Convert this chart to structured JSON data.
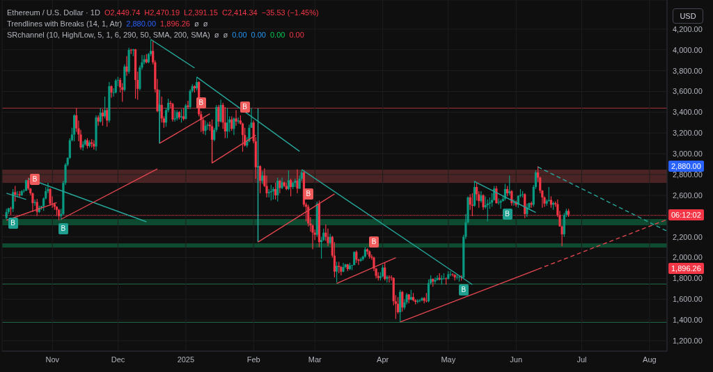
{
  "chart_data": {
    "type": "candlestick",
    "title": "Ethereum / U.S. Dollar · 1D",
    "x": [
      "2024-10-11",
      "2024-10-12",
      "2024-10-13",
      "2024-10-14",
      "2024-10-15",
      "2024-10-16",
      "2024-10-17",
      "2024-10-18",
      "2024-10-19",
      "2024-10-20",
      "2024-10-21",
      "2024-10-22",
      "2024-10-23",
      "2024-10-24",
      "2024-10-25",
      "2024-10-26",
      "2024-10-27",
      "2024-10-28",
      "2024-10-29",
      "2024-10-30",
      "2024-10-31",
      "2024-11-01",
      "2024-11-02",
      "2024-11-03",
      "2024-11-04",
      "2024-11-05",
      "2024-11-06",
      "2024-11-07",
      "2024-11-08",
      "2024-11-09",
      "2024-11-10",
      "2024-11-11",
      "2024-11-12",
      "2024-11-13",
      "2024-11-14",
      "2024-11-15",
      "2024-11-16",
      "2024-11-17",
      "2024-11-18",
      "2024-11-19",
      "2024-11-20",
      "2024-11-21",
      "2024-11-22",
      "2024-11-23",
      "2024-11-24",
      "2024-11-25",
      "2024-11-26",
      "2024-11-27",
      "2024-11-28",
      "2024-11-29",
      "2024-11-30",
      "2024-12-01",
      "2024-12-02",
      "2024-12-03",
      "2024-12-04",
      "2024-12-05",
      "2024-12-06",
      "2024-12-07",
      "2024-12-08",
      "2024-12-09",
      "2024-12-10",
      "2024-12-11",
      "2024-12-12",
      "2024-12-13",
      "2024-12-14",
      "2024-12-15",
      "2024-12-16",
      "2024-12-17",
      "2024-12-18",
      "2024-12-19",
      "2024-12-20",
      "2024-12-21",
      "2024-12-22",
      "2024-12-23",
      "2024-12-24",
      "2024-12-25",
      "2024-12-26",
      "2024-12-27",
      "2024-12-28",
      "2024-12-29",
      "2024-12-30",
      "2024-12-31",
      "2025-01-01",
      "2025-01-02",
      "2025-01-03",
      "2025-01-04",
      "2025-01-05",
      "2025-01-06",
      "2025-01-07",
      "2025-01-08",
      "2025-01-09",
      "2025-01-10",
      "2025-01-11",
      "2025-01-12",
      "2025-01-13",
      "2025-01-14",
      "2025-01-15",
      "2025-01-16",
      "2025-01-17",
      "2025-01-18",
      "2025-01-19",
      "2025-01-20",
      "2025-01-21",
      "2025-01-22",
      "2025-01-23",
      "2025-01-24",
      "2025-01-25",
      "2025-01-26",
      "2025-01-27",
      "2025-01-28",
      "2025-01-29",
      "2025-01-30",
      "2025-01-31",
      "2025-02-01",
      "2025-02-02",
      "2025-02-03",
      "2025-02-04",
      "2025-02-05",
      "2025-02-06",
      "2025-02-07",
      "2025-02-08",
      "2025-02-09",
      "2025-02-10",
      "2025-02-11",
      "2025-02-12",
      "2025-02-13",
      "2025-02-14",
      "2025-02-15",
      "2025-02-16",
      "2025-02-17",
      "2025-02-18",
      "2025-02-19",
      "2025-02-20",
      "2025-02-21",
      "2025-02-22",
      "2025-02-23",
      "2025-02-24",
      "2025-02-25",
      "2025-02-26",
      "2025-02-27",
      "2025-02-28",
      "2025-03-01",
      "2025-03-02",
      "2025-03-03",
      "2025-03-04",
      "2025-03-05",
      "2025-03-06",
      "2025-03-07",
      "2025-03-08",
      "2025-03-09",
      "2025-03-10",
      "2025-03-11",
      "2025-03-12",
      "2025-03-13",
      "2025-03-14",
      "2025-03-15",
      "2025-03-16",
      "2025-03-17",
      "2025-03-18",
      "2025-03-19",
      "2025-03-20",
      "2025-03-21",
      "2025-03-22",
      "2025-03-23",
      "2025-03-24",
      "2025-03-25",
      "2025-03-26",
      "2025-03-27",
      "2025-03-28",
      "2025-03-29",
      "2025-03-30",
      "2025-03-31",
      "2025-04-01",
      "2025-04-02",
      "2025-04-03",
      "2025-04-04",
      "2025-04-05",
      "2025-04-06",
      "2025-04-07",
      "2025-04-08",
      "2025-04-09",
      "2025-04-10",
      "2025-04-11",
      "2025-04-12",
      "2025-04-13",
      "2025-04-14",
      "2025-04-15",
      "2025-04-16",
      "2025-04-17",
      "2025-04-18",
      "2025-04-19",
      "2025-04-20",
      "2025-04-21",
      "2025-04-22",
      "2025-04-23",
      "2025-04-24",
      "2025-04-25",
      "2025-04-26",
      "2025-04-27",
      "2025-04-28",
      "2025-04-29",
      "2025-04-30",
      "2025-05-01",
      "2025-05-02",
      "2025-05-03",
      "2025-05-04",
      "2025-05-05",
      "2025-05-06",
      "2025-05-07",
      "2025-05-08",
      "2025-05-09",
      "2025-05-10",
      "2025-05-11",
      "2025-05-12",
      "2025-05-13",
      "2025-05-14",
      "2025-05-15",
      "2025-05-16",
      "2025-05-17",
      "2025-05-18",
      "2025-05-19",
      "2025-05-20",
      "2025-05-21",
      "2025-05-22",
      "2025-05-23",
      "2025-05-24",
      "2025-05-25",
      "2025-05-26",
      "2025-05-27",
      "2025-05-28",
      "2025-05-29",
      "2025-05-30",
      "2025-05-31",
      "2025-06-01",
      "2025-06-02",
      "2025-06-03",
      "2025-06-04",
      "2025-06-05",
      "2025-06-06",
      "2025-06-07",
      "2025-06-08",
      "2025-06-09",
      "2025-06-10",
      "2025-06-11",
      "2025-06-12",
      "2025-06-13",
      "2025-06-14",
      "2025-06-15",
      "2025-06-16",
      "2025-06-17",
      "2025-06-18",
      "2025-06-19",
      "2025-06-20",
      "2025-06-21",
      "2025-06-22",
      "2025-06-23",
      "2025-06-24",
      "2025-06-25"
    ],
    "ohlc": [
      [
        2380,
        2470,
        2370,
        2440
      ],
      [
        2440,
        2480,
        2420,
        2475
      ],
      [
        2475,
        2490,
        2410,
        2470
      ],
      [
        2470,
        2660,
        2440,
        2630
      ],
      [
        2630,
        2690,
        2540,
        2605
      ],
      [
        2605,
        2640,
        2580,
        2610
      ],
      [
        2610,
        2640,
        2580,
        2600
      ],
      [
        2600,
        2650,
        2595,
        2640
      ],
      [
        2640,
        2660,
        2625,
        2645
      ],
      [
        2645,
        2750,
        2640,
        2745
      ],
      [
        2745,
        2770,
        2650,
        2665
      ],
      [
        2665,
        2670,
        2600,
        2620
      ],
      [
        2620,
        2625,
        2440,
        2525
      ],
      [
        2525,
        2560,
        2500,
        2535
      ],
      [
        2535,
        2565,
        2400,
        2440
      ],
      [
        2440,
        2500,
        2430,
        2480
      ],
      [
        2480,
        2500,
        2460,
        2495
      ],
      [
        2495,
        2580,
        2450,
        2570
      ],
      [
        2570,
        2680,
        2560,
        2640
      ],
      [
        2640,
        2720,
        2620,
        2660
      ],
      [
        2660,
        2670,
        2500,
        2520
      ],
      [
        2520,
        2590,
        2480,
        2515
      ],
      [
        2515,
        2530,
        2460,
        2490
      ],
      [
        2490,
        2495,
        2400,
        2460
      ],
      [
        2460,
        2470,
        2360,
        2400
      ],
      [
        2400,
        2470,
        2360,
        2420
      ],
      [
        2420,
        2740,
        2410,
        2720
      ],
      [
        2720,
        2910,
        2700,
        2895
      ],
      [
        2895,
        2965,
        2880,
        2960
      ],
      [
        2960,
        3150,
        2950,
        3130
      ],
      [
        3130,
        3250,
        3120,
        3185
      ],
      [
        3185,
        3380,
        3120,
        3370
      ],
      [
        3370,
        3440,
        3210,
        3245
      ],
      [
        3245,
        3320,
        3120,
        3185
      ],
      [
        3185,
        3230,
        3040,
        3060
      ],
      [
        3060,
        3120,
        3030,
        3090
      ],
      [
        3090,
        3140,
        3080,
        3130
      ],
      [
        3130,
        3150,
        3050,
        3075
      ],
      [
        3075,
        3130,
        3060,
        3110
      ],
      [
        3110,
        3140,
        3060,
        3095
      ],
      [
        3095,
        3130,
        3040,
        3070
      ],
      [
        3070,
        3370,
        3030,
        3350
      ],
      [
        3350,
        3370,
        3270,
        3310
      ],
      [
        3310,
        3440,
        3300,
        3395
      ],
      [
        3395,
        3430,
        3270,
        3360
      ],
      [
        3360,
        3550,
        3340,
        3420
      ],
      [
        3420,
        3440,
        3260,
        3320
      ],
      [
        3320,
        3690,
        3300,
        3650
      ],
      [
        3650,
        3660,
        3540,
        3590
      ],
      [
        3590,
        3630,
        3550,
        3590
      ],
      [
        3590,
        3720,
        3580,
        3705
      ],
      [
        3705,
        3740,
        3650,
        3710
      ],
      [
        3710,
        3730,
        3590,
        3640
      ],
      [
        3640,
        3680,
        3500,
        3615
      ],
      [
        3615,
        3860,
        3600,
        3840
      ],
      [
        3840,
        3940,
        3750,
        3790
      ],
      [
        3790,
        4020,
        3770,
        4000
      ],
      [
        4000,
        4010,
        3960,
        3995
      ],
      [
        3995,
        4010,
        3940,
        4005
      ],
      [
        4005,
        4010,
        3530,
        3710
      ],
      [
        3710,
        3790,
        3520,
        3625
      ],
      [
        3625,
        3850,
        3610,
        3830
      ],
      [
        3830,
        3950,
        3810,
        3880
      ],
      [
        3880,
        3950,
        3860,
        3910
      ],
      [
        3910,
        3960,
        3870,
        3880
      ],
      [
        3880,
        3970,
        3870,
        3960
      ],
      [
        3960,
        4100,
        3940,
        3990
      ],
      [
        3990,
        4090,
        3860,
        3880
      ],
      [
        3880,
        3900,
        3590,
        3620
      ],
      [
        3620,
        3720,
        3400,
        3410
      ],
      [
        3410,
        3480,
        3100,
        3470
      ],
      [
        3470,
        3550,
        3300,
        3340
      ],
      [
        3340,
        3360,
        3250,
        3300
      ],
      [
        3300,
        3440,
        3260,
        3420
      ],
      [
        3420,
        3530,
        3400,
        3490
      ],
      [
        3490,
        3510,
        3440,
        3480
      ],
      [
        3480,
        3490,
        3310,
        3330
      ],
      [
        3330,
        3420,
        3310,
        3340
      ],
      [
        3340,
        3420,
        3320,
        3400
      ],
      [
        3400,
        3410,
        3330,
        3350
      ],
      [
        3350,
        3430,
        3300,
        3360
      ],
      [
        3360,
        3440,
        3320,
        3335
      ],
      [
        3335,
        3480,
        3330,
        3465
      ],
      [
        3465,
        3510,
        3430,
        3450
      ],
      [
        3450,
        3620,
        3430,
        3605
      ],
      [
        3605,
        3670,
        3590,
        3650
      ],
      [
        3650,
        3660,
        3590,
        3630
      ],
      [
        3630,
        3740,
        3610,
        3690
      ],
      [
        3690,
        3700,
        3360,
        3380
      ],
      [
        3380,
        3410,
        3210,
        3325
      ],
      [
        3325,
        3340,
        3190,
        3220
      ],
      [
        3220,
        3320,
        3180,
        3270
      ],
      [
        3270,
        3300,
        3230,
        3280
      ],
      [
        3280,
        3310,
        3220,
        3265
      ],
      [
        3265,
        3330,
        2910,
        3135
      ],
      [
        3135,
        3250,
        3120,
        3230
      ],
      [
        3230,
        3470,
        3210,
        3450
      ],
      [
        3450,
        3470,
        3260,
        3310
      ],
      [
        3310,
        3520,
        3300,
        3470
      ],
      [
        3470,
        3490,
        3240,
        3300
      ],
      [
        3300,
        3450,
        3150,
        3215
      ],
      [
        3215,
        3440,
        3150,
        3300
      ],
      [
        3300,
        3360,
        3210,
        3330
      ],
      [
        3330,
        3360,
        3220,
        3240
      ],
      [
        3240,
        3350,
        3180,
        3340
      ],
      [
        3340,
        3420,
        3270,
        3310
      ],
      [
        3310,
        3350,
        3290,
        3320
      ],
      [
        3320,
        3370,
        3280,
        3290
      ],
      [
        3290,
        3300,
        3020,
        3180
      ],
      [
        3180,
        3250,
        3070,
        3080
      ],
      [
        3080,
        3160,
        3060,
        3120
      ],
      [
        3120,
        3280,
        3110,
        3250
      ],
      [
        3250,
        3440,
        3250,
        3300
      ],
      [
        3300,
        3320,
        3100,
        3120
      ],
      [
        3120,
        3160,
        2760,
        2870
      ],
      [
        2870,
        2930,
        2150,
        2880
      ],
      [
        2880,
        2890,
        2620,
        2740
      ],
      [
        2740,
        2830,
        2710,
        2790
      ],
      [
        2790,
        2860,
        2680,
        2690
      ],
      [
        2690,
        2790,
        2580,
        2620
      ],
      [
        2620,
        2660,
        2580,
        2630
      ],
      [
        2630,
        2700,
        2550,
        2640
      ],
      [
        2640,
        2680,
        2560,
        2660
      ],
      [
        2660,
        2720,
        2560,
        2600
      ],
      [
        2600,
        2770,
        2540,
        2740
      ],
      [
        2740,
        2750,
        2620,
        2670
      ],
      [
        2670,
        2770,
        2660,
        2725
      ],
      [
        2725,
        2730,
        2680,
        2690
      ],
      [
        2690,
        2720,
        2650,
        2660
      ],
      [
        2660,
        2840,
        2650,
        2745
      ],
      [
        2745,
        2760,
        2590,
        2680
      ],
      [
        2680,
        2730,
        2660,
        2720
      ],
      [
        2720,
        2760,
        2680,
        2740
      ],
      [
        2740,
        2850,
        2620,
        2665
      ],
      [
        2665,
        2790,
        2660,
        2760
      ],
      [
        2760,
        2840,
        2740,
        2820
      ],
      [
        2820,
        2830,
        2490,
        2510
      ],
      [
        2510,
        2530,
        2350,
        2490
      ],
      [
        2490,
        2510,
        2300,
        2330
      ],
      [
        2330,
        2390,
        2250,
        2310
      ],
      [
        2310,
        2320,
        2080,
        2240
      ],
      [
        2240,
        2270,
        2170,
        2220
      ],
      [
        2220,
        2540,
        2200,
        2520
      ],
      [
        2520,
        2550,
        2100,
        2150
      ],
      [
        2150,
        2200,
        1990,
        2170
      ],
      [
        2170,
        2280,
        2160,
        2240
      ],
      [
        2240,
        2320,
        2160,
        2200
      ],
      [
        2200,
        2280,
        2110,
        2140
      ],
      [
        2140,
        2230,
        2130,
        2200
      ],
      [
        2200,
        2210,
        2000,
        2020
      ],
      [
        2020,
        2150,
        1810,
        1865
      ],
      [
        1865,
        1960,
        1760,
        1920
      ],
      [
        1920,
        1960,
        1850,
        1910
      ],
      [
        1910,
        1920,
        1830,
        1865
      ],
      [
        1865,
        1950,
        1860,
        1910
      ],
      [
        1910,
        1940,
        1900,
        1935
      ],
      [
        1935,
        1940,
        1870,
        1890
      ],
      [
        1890,
        1950,
        1880,
        1925
      ],
      [
        1925,
        1930,
        1880,
        1930
      ],
      [
        1930,
        2060,
        1925,
        2055
      ],
      [
        2055,
        2070,
        1950,
        1980
      ],
      [
        1980,
        1990,
        1930,
        1970
      ],
      [
        1970,
        2000,
        1960,
        1985
      ],
      [
        1985,
        2020,
        1970,
        2010
      ],
      [
        2010,
        2100,
        2000,
        2080
      ],
      [
        2080,
        2090,
        2030,
        2060
      ],
      [
        2060,
        2070,
        1990,
        2010
      ],
      [
        2010,
        2030,
        1980,
        2000
      ],
      [
        2000,
        2010,
        1870,
        1895
      ],
      [
        1895,
        1900,
        1800,
        1825
      ],
      [
        1825,
        1860,
        1780,
        1805
      ],
      [
        1805,
        1860,
        1780,
        1820
      ],
      [
        1820,
        1930,
        1810,
        1905
      ],
      [
        1905,
        1950,
        1780,
        1795
      ],
      [
        1795,
        1830,
        1760,
        1815
      ],
      [
        1815,
        1830,
        1760,
        1810
      ],
      [
        1810,
        1830,
        1780,
        1805
      ],
      [
        1805,
        1810,
        1540,
        1580
      ],
      [
        1580,
        1640,
        1410,
        1555
      ],
      [
        1555,
        1620,
        1460,
        1475
      ],
      [
        1475,
        1690,
        1380,
        1670
      ],
      [
        1670,
        1680,
        1480,
        1520
      ],
      [
        1520,
        1600,
        1500,
        1570
      ],
      [
        1570,
        1660,
        1550,
        1645
      ],
      [
        1645,
        1650,
        1560,
        1595
      ],
      [
        1595,
        1690,
        1590,
        1620
      ],
      [
        1620,
        1660,
        1580,
        1590
      ],
      [
        1590,
        1600,
        1550,
        1575
      ],
      [
        1575,
        1600,
        1560,
        1585
      ],
      [
        1585,
        1600,
        1570,
        1590
      ],
      [
        1590,
        1620,
        1580,
        1610
      ],
      [
        1610,
        1620,
        1560,
        1585
      ],
      [
        1585,
        1660,
        1570,
        1580
      ],
      [
        1580,
        1790,
        1570,
        1755
      ],
      [
        1755,
        1830,
        1740,
        1795
      ],
      [
        1795,
        1800,
        1720,
        1770
      ],
      [
        1770,
        1810,
        1750,
        1785
      ],
      [
        1785,
        1830,
        1780,
        1805
      ],
      [
        1805,
        1850,
        1780,
        1790
      ],
      [
        1790,
        1830,
        1740,
        1800
      ],
      [
        1800,
        1850,
        1790,
        1800
      ],
      [
        1800,
        1810,
        1740,
        1795
      ],
      [
        1795,
        1870,
        1790,
        1840
      ],
      [
        1840,
        1870,
        1820,
        1840
      ],
      [
        1840,
        1850,
        1820,
        1835
      ],
      [
        1835,
        1840,
        1780,
        1810
      ],
      [
        1810,
        1840,
        1790,
        1815
      ],
      [
        1815,
        1830,
        1770,
        1815
      ],
      [
        1815,
        1830,
        1780,
        1810
      ],
      [
        1810,
        2220,
        1800,
        2200
      ],
      [
        2200,
        2420,
        2180,
        2340
      ],
      [
        2340,
        2590,
        2330,
        2580
      ],
      [
        2580,
        2610,
        2460,
        2510
      ],
      [
        2510,
        2620,
        2400,
        2500
      ],
      [
        2500,
        2740,
        2490,
        2680
      ],
      [
        2680,
        2720,
        2550,
        2610
      ],
      [
        2610,
        2640,
        2480,
        2545
      ],
      [
        2545,
        2640,
        2530,
        2600
      ],
      [
        2600,
        2610,
        2460,
        2485
      ],
      [
        2485,
        2590,
        2470,
        2505
      ],
      [
        2505,
        2560,
        2350,
        2520
      ],
      [
        2520,
        2580,
        2470,
        2530
      ],
      [
        2530,
        2620,
        2490,
        2555
      ],
      [
        2555,
        2690,
        2550,
        2665
      ],
      [
        2665,
        2690,
        2520,
        2525
      ],
      [
        2525,
        2570,
        2510,
        2530
      ],
      [
        2530,
        2560,
        2470,
        2545
      ],
      [
        2545,
        2590,
        2540,
        2565
      ],
      [
        2565,
        2710,
        2550,
        2660
      ],
      [
        2660,
        2690,
        2590,
        2620
      ],
      [
        2620,
        2790,
        2600,
        2640
      ],
      [
        2640,
        2650,
        2500,
        2525
      ],
      [
        2525,
        2560,
        2500,
        2530
      ],
      [
        2530,
        2550,
        2490,
        2510
      ],
      [
        2510,
        2600,
        2480,
        2595
      ],
      [
        2595,
        2660,
        2580,
        2605
      ],
      [
        2605,
        2640,
        2580,
        2610
      ],
      [
        2610,
        2620,
        2380,
        2420
      ],
      [
        2420,
        2520,
        2390,
        2480
      ],
      [
        2480,
        2530,
        2470,
        2525
      ],
      [
        2525,
        2540,
        2480,
        2510
      ],
      [
        2510,
        2700,
        2490,
        2680
      ],
      [
        2680,
        2840,
        2660,
        2820
      ],
      [
        2820,
        2880,
        2730,
        2770
      ],
      [
        2770,
        2780,
        2620,
        2645
      ],
      [
        2645,
        2650,
        2480,
        2580
      ],
      [
        2580,
        2590,
        2490,
        2520
      ],
      [
        2520,
        2560,
        2500,
        2545
      ],
      [
        2545,
        2680,
        2540,
        2555
      ],
      [
        2555,
        2590,
        2480,
        2510
      ],
      [
        2510,
        2540,
        2460,
        2525
      ],
      [
        2525,
        2540,
        2490,
        2515
      ],
      [
        2515,
        2560,
        2390,
        2410
      ],
      [
        2410,
        2450,
        2300,
        2300
      ],
      [
        2300,
        2310,
        2110,
        2225
      ],
      [
        2225,
        2430,
        2200,
        2410
      ],
      [
        2410,
        2470,
        2390,
        2450
      ],
      [
        2449.74,
        2470.19,
        2391.15,
        2414.34
      ]
    ],
    "series": [
      {
        "type": "line",
        "color": "#26a69a",
        "x": [
          "2024-10-11",
          "2024-10-20"
        ],
        "values": [
          2620,
          2560
        ]
      },
      {
        "type": "line",
        "color": "#26a69a",
        "x": [
          "2024-10-21",
          "2024-12-14"
        ],
        "values": [
          2760,
          2345
        ]
      },
      {
        "type": "line",
        "color": "#e0454f",
        "x": [
          "2024-10-11",
          "2024-11-03"
        ],
        "values": [
          2360,
          2530
        ]
      },
      {
        "type": "line",
        "color": "#e0454f",
        "x": [
          "2024-11-05",
          "2024-12-19"
        ],
        "values": [
          2370,
          2855
        ]
      },
      {
        "type": "line",
        "color": "#26a69a",
        "x": [
          "2024-12-16",
          "2025-01-05"
        ],
        "values": [
          4100,
          3826
        ]
      },
      {
        "type": "line",
        "color": "#26a69a",
        "x": [
          "2024-12-20",
          "2024-12-20"
        ],
        "values": [
          3615,
          3100
        ]
      },
      {
        "type": "line",
        "color": "#e0454f",
        "x": [
          "2024-12-20",
          "2025-01-12"
        ],
        "values": [
          3100,
          3385
        ]
      },
      {
        "type": "line",
        "color": "#26a69a",
        "x": [
          "2025-01-06",
          "2025-02-22"
        ],
        "values": [
          3738,
          3023
        ]
      },
      {
        "type": "line",
        "color": "#e0454f",
        "x": [
          "2025-01-13",
          "2025-01-13",
          "2025-02-02"
        ],
        "values": [
          3134,
          2911,
          3179
        ]
      },
      {
        "type": "line",
        "color": "#26a69a",
        "x": [
          "2025-02-03",
          "2025-02-03"
        ],
        "values": [
          3436,
          2150
        ]
      },
      {
        "type": "line",
        "color": "#e0454f",
        "x": [
          "2025-02-03",
          "2025-03-10"
        ],
        "values": [
          2150,
          2613
        ]
      },
      {
        "type": "line",
        "color": "#26a69a",
        "x": [
          "2025-02-23",
          "2025-05-12"
        ],
        "values": [
          2848,
          1741
        ]
      },
      {
        "type": "line",
        "color": "#e0454f",
        "x": [
          "2025-03-11",
          "2025-04-07"
        ],
        "values": [
          1752,
          2000
        ]
      },
      {
        "type": "line",
        "color": "#e0454f",
        "x": [
          "2025-04-09",
          "2025-06-11"
        ],
        "values": [
          1380,
          1889
        ]
      },
      {
        "type": "line",
        "color": "#e0454f",
        "line_style": "dashed",
        "x": [
          "2025-06-11",
          "2025-08-09"
        ],
        "values": [
          1889,
          2367
        ]
      },
      {
        "type": "line",
        "color": "#26a69a",
        "x": [
          "2025-05-13",
          "2025-06-10"
        ],
        "values": [
          2732,
          2434
        ]
      },
      {
        "type": "line",
        "color": "#26a69a",
        "line_style": "dashed",
        "x": [
          "2025-06-11",
          "2025-08-09"
        ],
        "values": [
          2873,
          2255
        ]
      }
    ],
    "ref_lines": [
      {
        "axis": "y",
        "value": 3440,
        "color": "#a3323a"
      },
      {
        "axis": "y",
        "value": 1750,
        "color": "#1f6b4a"
      },
      {
        "axis": "y",
        "value": 1380,
        "color": "#1f6b4a"
      },
      {
        "axis": "y",
        "value": 2414.34,
        "color": "#f23645",
        "line_style": "dotted"
      }
    ],
    "bands": [
      {
        "axis": "y",
        "from": 2720,
        "to": 2850,
        "color": "#4a2325"
      },
      {
        "axis": "y",
        "from": 2310,
        "to": 2370,
        "color": "#0d4a30"
      },
      {
        "axis": "y",
        "from": 2100,
        "to": 2140,
        "color": "#0d4a30"
      }
    ],
    "annotations": [
      "O2,449.74",
      "H2,470.19",
      "L2,391.15",
      "C2,414.34",
      "−35.53 (−1.45%)",
      "Trendlines with Breaks (14, 1, Atr)",
      "2,880.00",
      "1,896.26",
      "ø",
      "ø",
      "SRchannel (10, High/Low, 5, 1, 6, 290, 50, SMA, 200, SMA)",
      "ø",
      "ø",
      "0.00",
      "0.00",
      "0.00",
      "0.00",
      "USD",
      "2,880.00",
      "06:12:02",
      "1,896.26",
      {
        "text": "B",
        "x": "2024-10-14",
        "y": 2440
      },
      {
        "text": "B",
        "x": "2024-10-24",
        "y": 2560
      },
      {
        "text": "B",
        "x": "2024-11-06",
        "y": 2410
      },
      {
        "text": "B",
        "x": "2025-01-08",
        "y": 3410
      },
      {
        "text": "B",
        "x": "2025-01-28",
        "y": 3250
      },
      {
        "text": "B",
        "x": "2025-02-26",
        "y": 2510
      },
      {
        "text": "B",
        "x": "2025-03-28",
        "y": 2010
      },
      {
        "text": "B",
        "x": "2025-05-08",
        "y": 1800
      },
      {
        "text": "B",
        "x": "2025-05-28",
        "y": 2590
      }
    ],
    "xlim": [
      "2024-10-09",
      "2025-08-09"
    ],
    "xticks": [
      {
        "value": "2024-11-01",
        "label": "Nov"
      },
      {
        "value": "2024-12-01",
        "label": "Dec"
      },
      {
        "value": "2025-01-01",
        "label": "2025"
      },
      {
        "value": "2025-02-01",
        "label": "Feb"
      },
      {
        "value": "2025-03-01",
        "label": "Mar"
      },
      {
        "value": "2025-04-01",
        "label": "Apr"
      },
      {
        "value": "2025-05-01",
        "label": "May"
      },
      {
        "value": "2025-06-01",
        "label": "Jun"
      },
      {
        "value": "2025-07-01",
        "label": "Jul"
      },
      {
        "value": "2025-08-01",
        "label": "Aug"
      }
    ],
    "ylim": [
      1100,
      4480
    ],
    "yticks": [
      {
        "value": 1200,
        "label": "1,200.00"
      },
      {
        "value": 1400,
        "label": "1,400.00"
      },
      {
        "value": 1600,
        "label": "1,600.00"
      },
      {
        "value": 1800,
        "label": "1,800.00"
      },
      {
        "value": 2000,
        "label": "2,000.00"
      },
      {
        "value": 2200,
        "label": "2,200.00"
      },
      {
        "value": 2400,
        "label": null
      },
      {
        "value": 2600,
        "label": "2,600.00"
      },
      {
        "value": 2800,
        "label": "2,800.00"
      },
      {
        "value": 3000,
        "label": "3,000.00"
      },
      {
        "value": 3200,
        "label": "3,200.00"
      },
      {
        "value": 3400,
        "label": "3,400.00"
      },
      {
        "value": 3600,
        "label": "3,600.00"
      },
      {
        "value": 3800,
        "label": "3,800.00"
      },
      {
        "value": 4000,
        "label": "4,000.00"
      },
      {
        "value": 4200,
        "label": "4,200.00"
      }
    ],
    "grid": true
  }
}
